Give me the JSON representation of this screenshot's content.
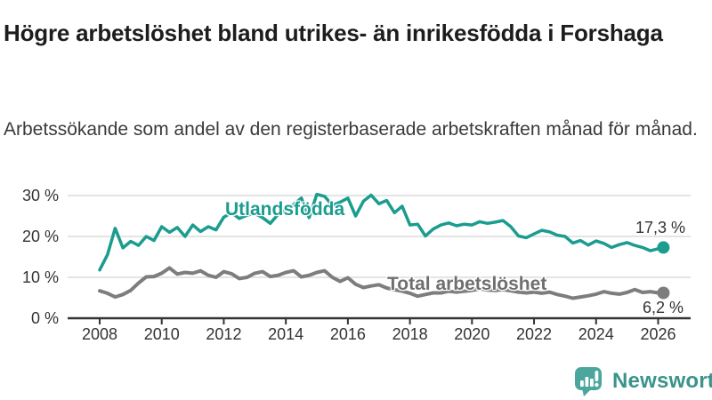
{
  "header": {
    "title": "Högre arbetslöshet bland utrikes- än inrikesfödda i Forshaga",
    "subtitle": "Arbetssökande som andel av den registerbaserade arbetskraften månad för månad."
  },
  "chart_data": {
    "type": "line",
    "title": "Högre arbetslöshet bland utrikes- än inrikesfödda i Forshaga",
    "xlabel": "",
    "ylabel": "",
    "grid": "horizontal-light",
    "legend_position": "inline-labels-on-lines",
    "xlim": [
      2007,
      2027
    ],
    "ylim": [
      0,
      32
    ],
    "yticks": [
      {
        "value": 0,
        "label": "0 %"
      },
      {
        "value": 10,
        "label": "10 %"
      },
      {
        "value": 20,
        "label": "20 %"
      },
      {
        "value": 30,
        "label": "30 %"
      }
    ],
    "xticks": [
      {
        "value": 2008,
        "label": "2008"
      },
      {
        "value": 2010,
        "label": "2010"
      },
      {
        "value": 2012,
        "label": "2012"
      },
      {
        "value": 2014,
        "label": "2014"
      },
      {
        "value": 2016,
        "label": "2016"
      },
      {
        "value": 2018,
        "label": "2018"
      },
      {
        "value": 2020,
        "label": "2020"
      },
      {
        "value": 2022,
        "label": "2022"
      },
      {
        "value": 2024,
        "label": "2024"
      },
      {
        "value": 2026,
        "label": "2026"
      }
    ],
    "x": [
      2008,
      2008.25,
      2008.5,
      2008.75,
      2009,
      2009.25,
      2009.5,
      2009.75,
      2010,
      2010.25,
      2010.5,
      2010.75,
      2011,
      2011.25,
      2011.5,
      2011.75,
      2012,
      2012.25,
      2012.5,
      2012.75,
      2013,
      2013.25,
      2013.5,
      2013.75,
      2014,
      2014.25,
      2014.5,
      2014.75,
      2015,
      2015.25,
      2015.5,
      2015.75,
      2016,
      2016.25,
      2016.5,
      2016.75,
      2017,
      2017.25,
      2017.5,
      2017.75,
      2018,
      2018.25,
      2018.5,
      2018.75,
      2019,
      2019.25,
      2019.5,
      2019.75,
      2020,
      2020.25,
      2020.5,
      2020.75,
      2021,
      2021.25,
      2021.5,
      2021.75,
      2022,
      2022.25,
      2022.5,
      2022.75,
      2023,
      2023.25,
      2023.5,
      2023.75,
      2024,
      2024.25,
      2024.5,
      2024.75,
      2025,
      2025.25,
      2025.5,
      2025.75,
      2026,
      2026.17
    ],
    "series": [
      {
        "name": "Utlandsfödda",
        "color": "#1a9c8f",
        "end_label": "17,3 %",
        "end_value": 17.3,
        "values": [
          11.8,
          15.5,
          22.0,
          17.2,
          18.8,
          17.8,
          20.0,
          19.0,
          22.4,
          21.0,
          22.2,
          20.0,
          22.8,
          21.2,
          22.4,
          21.6,
          24.7,
          25.8,
          24.4,
          25.2,
          25.6,
          24.6,
          23.2,
          25.4,
          26.4,
          27.8,
          29.4,
          24.6,
          30.3,
          29.8,
          27.6,
          28.4,
          29.4,
          25.0,
          28.6,
          30.1,
          28.0,
          28.8,
          25.8,
          27.4,
          22.8,
          23.0,
          20.1,
          21.8,
          22.8,
          23.3,
          22.6,
          23.0,
          22.8,
          23.6,
          23.2,
          23.5,
          23.9,
          22.4,
          20.1,
          19.7,
          20.6,
          21.5,
          21.1,
          20.3,
          20.0,
          18.4,
          19.0,
          17.9,
          18.9,
          18.3,
          17.3,
          18.0,
          18.5,
          17.8,
          17.3,
          16.5,
          17.0,
          17.3
        ]
      },
      {
        "name": "Total arbetslöshet",
        "color": "#7d7d7d",
        "end_label": "6,2 %",
        "end_value": 6.2,
        "values": [
          6.7,
          6.1,
          5.2,
          5.8,
          6.8,
          8.6,
          10.1,
          10.2,
          11.0,
          12.3,
          10.8,
          11.2,
          11.0,
          11.6,
          10.5,
          10.0,
          11.4,
          10.9,
          9.7,
          10.0,
          11.0,
          11.4,
          10.2,
          10.5,
          11.2,
          11.6,
          10.1,
          10.5,
          11.2,
          11.6,
          10.0,
          9.0,
          9.9,
          8.3,
          7.5,
          7.9,
          8.2,
          7.4,
          7.0,
          6.6,
          6.1,
          5.4,
          5.8,
          6.2,
          6.2,
          6.6,
          6.4,
          6.6,
          6.8,
          7.2,
          6.9,
          6.8,
          7.0,
          6.7,
          6.4,
          6.2,
          6.4,
          6.1,
          6.4,
          5.8,
          5.4,
          4.9,
          5.2,
          5.5,
          5.9,
          6.5,
          6.1,
          5.9,
          6.3,
          7.0,
          6.3,
          6.5,
          6.2,
          6.2
        ]
      }
    ]
  },
  "footer": {
    "brand": "Newsworthy",
    "brand_color": "#3a948b",
    "logo_color": "#4ba79e"
  }
}
